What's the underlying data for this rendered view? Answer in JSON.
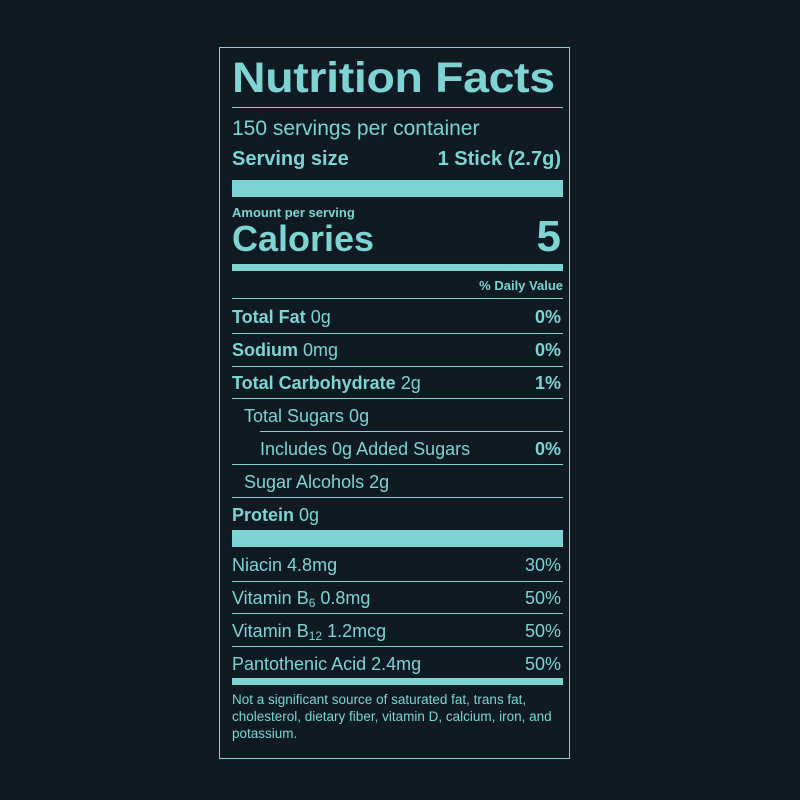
{
  "label": {
    "title": "Nutrition Facts",
    "servings_per_container": "150 servings per container",
    "serving_size_label": "Serving size",
    "serving_size_value": "1 Stick (2.7g)",
    "amount_per_serving": "Amount per serving",
    "calories_label": "Calories",
    "calories_value": "5",
    "daily_value_header": "% Daily Value",
    "nutrients": [
      {
        "name": "Total Fat",
        "amount": "0g",
        "dv": "0%"
      },
      {
        "name": "Sodium",
        "amount": "0mg",
        "dv": "0%"
      },
      {
        "name": "Total Carbohydrate",
        "amount": "2g",
        "dv": "1%"
      },
      {
        "name": "Total Sugars 0g"
      },
      {
        "name": "Includes 0g Added Sugars",
        "dv": "0%"
      },
      {
        "name": "Sugar Alcohols 2g"
      },
      {
        "name": "Protein",
        "amount": "0g"
      }
    ],
    "vitamins": [
      {
        "name": "Niacin",
        "amount": "4.8mg",
        "dv": "30%"
      },
      {
        "name": "Vitamin B",
        "sub": "6",
        "amount": "0.8mg",
        "dv": "50%"
      },
      {
        "name": "Vitamin B",
        "sub": "12",
        "amount": "1.2mcg",
        "dv": "50%"
      },
      {
        "name": "Pantothenic Acid",
        "amount": "2.4mg",
        "dv": "50%"
      }
    ],
    "footnote": "Not a significant source of saturated fat, trans fat, cholesterol, dietary fiber, vitamin D, calcium, iron, and potassium."
  },
  "colors": {
    "background": "#0f1a23",
    "accent": "#7ed3d3"
  }
}
